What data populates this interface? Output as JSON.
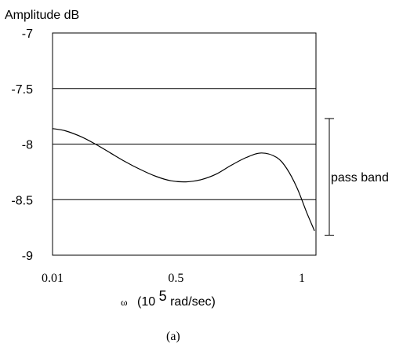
{
  "chart_data": {
    "type": "line",
    "ylabel": "Amplitude dB",
    "xlabel_prefix": "ω",
    "xlabel_base": "(10",
    "xlabel_exponent": "5",
    "xlabel_unit": "rad/sec)",
    "caption": "(a)",
    "annotation": "pass band",
    "x_ticks": [
      {
        "value": 0.01,
        "label": "0.01"
      },
      {
        "value": 0.5,
        "label": "0.5"
      },
      {
        "value": 1,
        "label": "1"
      }
    ],
    "y_ticks": [
      {
        "value": -7,
        "label": "-7"
      },
      {
        "value": -7.5,
        "label": "-7.5"
      },
      {
        "value": -8,
        "label": "-8"
      },
      {
        "value": -8.5,
        "label": "-8.5"
      },
      {
        "value": -9,
        "label": "-9"
      }
    ],
    "xlim": [
      0.01,
      1.07
    ],
    "ylim": [
      -9,
      -7
    ],
    "grid": "horizontal",
    "passband_range": [
      -7.77,
      -8.82
    ],
    "series": [
      {
        "x": [
          0.01,
          0.06,
          0.12,
          0.18,
          0.24,
          0.3,
          0.36,
          0.42,
          0.48,
          0.54,
          0.6,
          0.66,
          0.72,
          0.78,
          0.84,
          0.9,
          0.94,
          0.98,
          1.02,
          1.05
        ],
        "y": [
          -7.86,
          -7.88,
          -7.93,
          -8.0,
          -8.08,
          -8.16,
          -8.23,
          -8.29,
          -8.33,
          -8.34,
          -8.32,
          -8.27,
          -8.19,
          -8.12,
          -8.08,
          -8.12,
          -8.22,
          -8.39,
          -8.62,
          -8.78
        ],
        "color": "#000000"
      }
    ]
  }
}
